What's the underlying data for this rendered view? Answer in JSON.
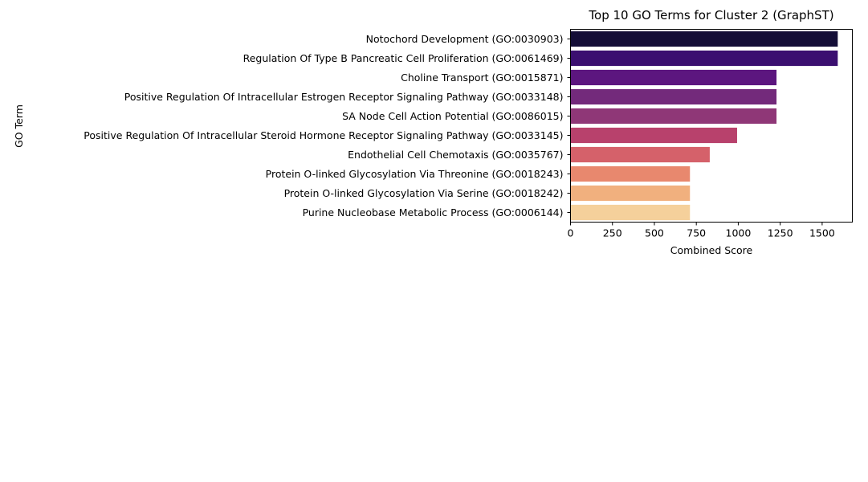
{
  "chart_data": {
    "type": "bar",
    "orientation": "horizontal",
    "title": "Top 10 GO Terms for Cluster 2 (GraphST)",
    "xlabel": "Combined Score",
    "ylabel": "GO Term",
    "xlim": [
      0,
      1680
    ],
    "xticks": [
      0,
      250,
      500,
      750,
      1000,
      1250,
      1500
    ],
    "palette": "magma",
    "grid": false,
    "categories": [
      "Notochord Development (GO:0030903)",
      "Regulation Of Type B Pancreatic Cell Proliferation (GO:0061469)",
      "Choline Transport (GO:0015871)",
      "Positive Regulation Of Intracellular Estrogen Receptor Signaling Pathway (GO:0033148)",
      "SA Node Cell Action Potential (GO:0086015)",
      "Positive Regulation Of Intracellular Steroid Hormone Receptor Signaling Pathway (GO:0033145)",
      "Endothelial Cell Chemotaxis (GO:0035767)",
      "Protein O-linked Glycosylation Via Threonine (GO:0018243)",
      "Protein O-linked Glycosylation Via Serine (GO:0018242)",
      "Purine Nucleobase Metabolic Process (GO:0006144)"
    ],
    "values": [
      1593,
      1593,
      1228,
      1228,
      1228,
      993,
      830,
      712,
      712,
      712
    ],
    "colors": [
      "#140e37",
      "#3b0f70",
      "#5c167f",
      "#732a7b",
      "#8f3777",
      "#b8416c",
      "#d5616a",
      "#e8886e",
      "#f1b07e",
      "#f5d09b"
    ]
  }
}
